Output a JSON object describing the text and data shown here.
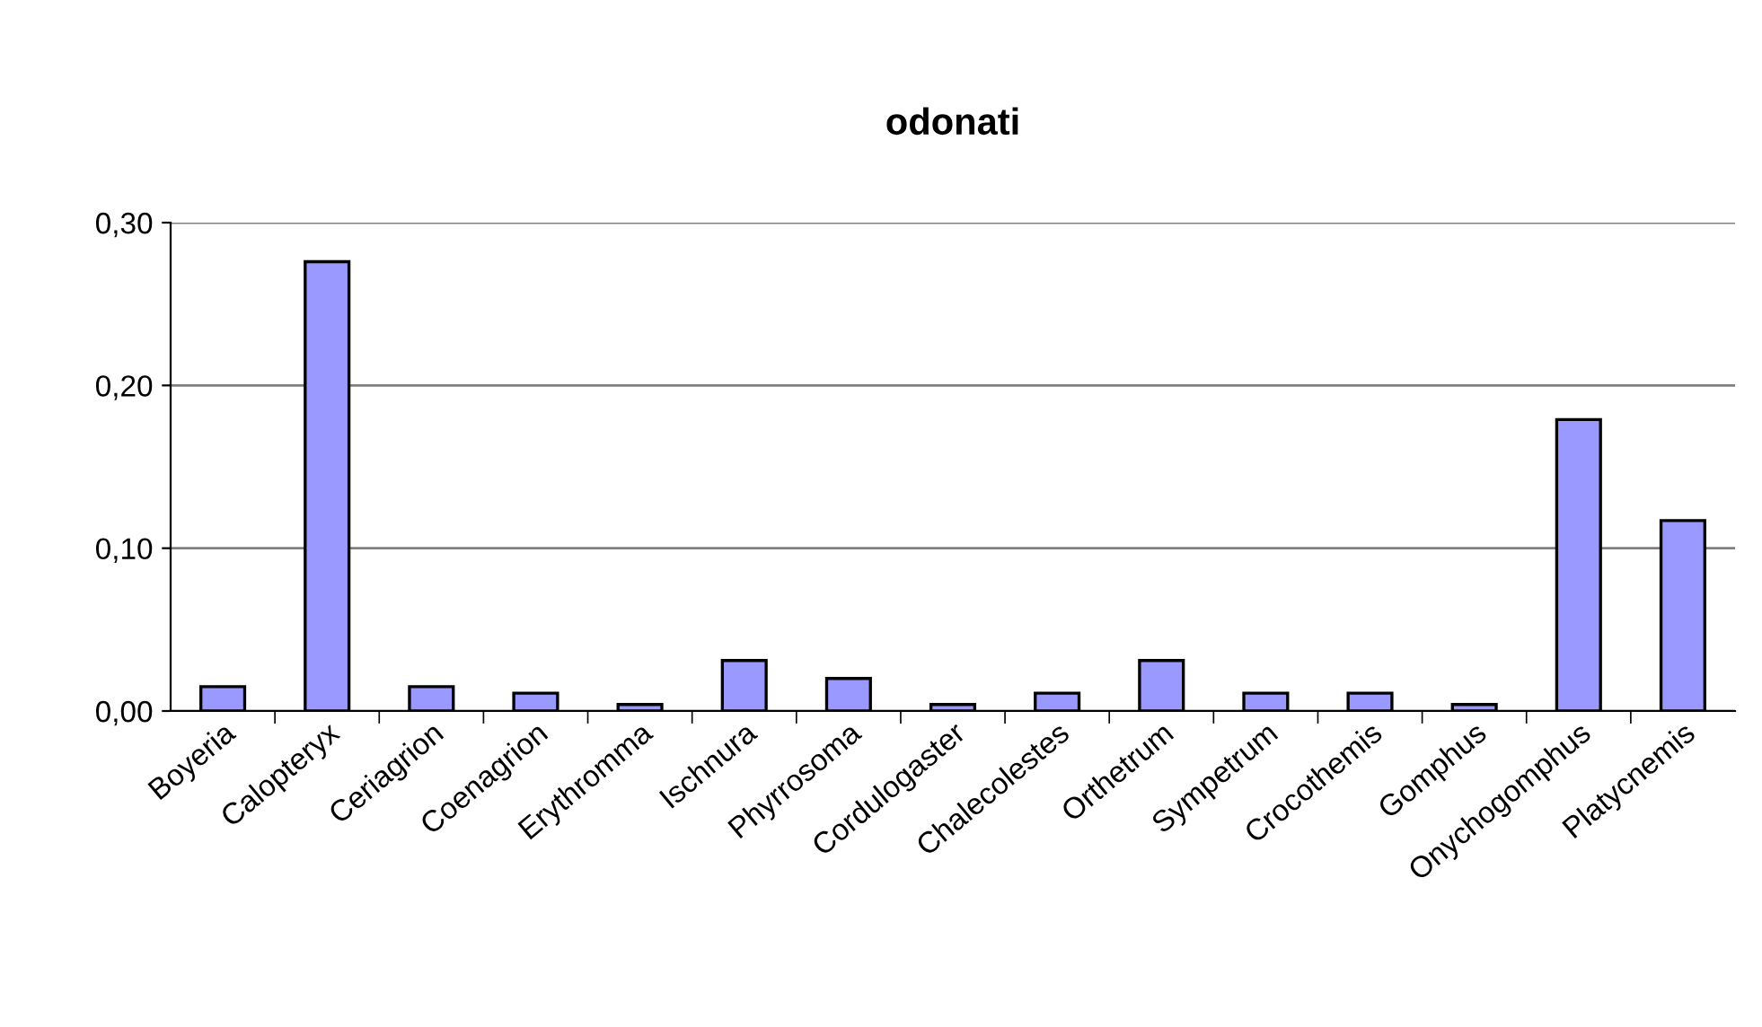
{
  "chart_data": {
    "type": "bar",
    "title": "odonati",
    "categories": [
      "Boyeria",
      "Calopteryx",
      "Ceriagrion",
      "Coenagrion",
      "Erythromma",
      "Ischnura",
      "Phyrrosoma",
      "Cordulogaster",
      "Chalecolestes",
      "Orthetrum",
      "Sympetrum",
      "Crocothemis",
      "Gomphus",
      "Onychogomphus",
      "Platycnemis"
    ],
    "values": [
      0.015,
      0.276,
      0.015,
      0.011,
      0.004,
      0.031,
      0.02,
      0.004,
      0.011,
      0.031,
      0.011,
      0.011,
      0.004,
      0.179,
      0.117
    ],
    "color": "#9999ff",
    "ylim": [
      0,
      0.3
    ],
    "yticks": [
      {
        "value": 0,
        "label": "0,00"
      },
      {
        "value": 0.1,
        "label": "0,10"
      },
      {
        "value": 0.2,
        "label": "0,20"
      },
      {
        "value": 0.3,
        "label": "0,30"
      }
    ],
    "grid": "y"
  }
}
